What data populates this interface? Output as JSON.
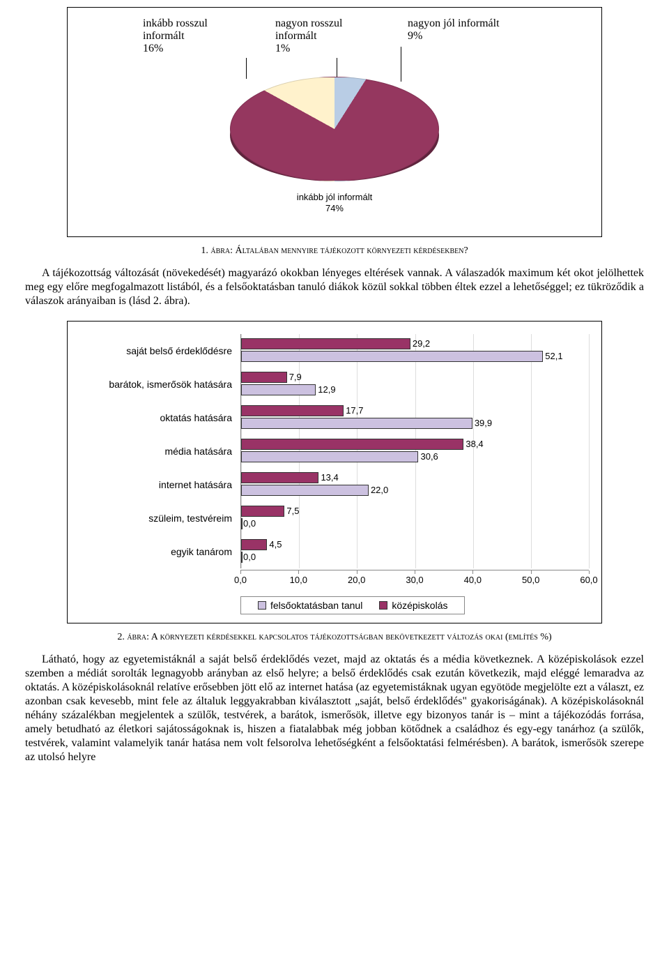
{
  "pie_chart": {
    "type": "pie",
    "slices": [
      {
        "label_l1": "nagyon rosszul",
        "label_l2": "informált",
        "pct": "1%",
        "value": 1,
        "color": "#b9cde5"
      },
      {
        "label_l1": "nagyon jól informált",
        "label_l2": "",
        "pct": "9%",
        "value": 9,
        "color": "#b9cde5"
      },
      {
        "label_l1": "inkább jól informált",
        "label_l2": "",
        "pct": "74%",
        "value": 74,
        "color": "#95375f"
      },
      {
        "label_l1": "inkább rosszul",
        "label_l2": "informált",
        "pct": "16%",
        "value": 16,
        "color": "#fff2cc"
      }
    ],
    "side_color": "#5f243d",
    "background_color": "#ffffff"
  },
  "caption1_prefix": "1. ",
  "caption1_word": "ábra",
  "caption1_rest": ": Általában mennyire tájékozott környezeti kérdésekben?",
  "para1": "A tájékozottság változását (növekedését) magyarázó okokban lényeges eltérések vannak. A válaszadók maximum két okot jelölhettek meg egy előre megfogalmazott listából, és a felsőoktatásban tanuló diákok közül sokkal többen éltek ezzel a lehetőséggel; ez tükröződik a válaszok arányaiban is (lásd 2. ábra).",
  "bar_chart": {
    "type": "bar",
    "xlim": [
      0,
      60
    ],
    "xtick_step": 10,
    "xticks": [
      "0,0",
      "10,0",
      "20,0",
      "30,0",
      "40,0",
      "50,0",
      "60,0"
    ],
    "series": [
      {
        "name": "felsőoktatásban tanul",
        "color": "#ccc1e0",
        "border": "#333333"
      },
      {
        "name": "középiskolás",
        "color": "#993366",
        "border": "#333333"
      }
    ],
    "categories": [
      {
        "label": "saját belső érdeklődésre",
        "a": 29.2,
        "a_txt": "29,2",
        "b": 52.1,
        "b_txt": "52,1"
      },
      {
        "label": "barátok, ismerősök hatására",
        "a": 7.9,
        "a_txt": "7,9",
        "b": 12.9,
        "b_txt": "12,9"
      },
      {
        "label": "oktatás hatására",
        "a": 17.7,
        "a_txt": "17,7",
        "b": 39.9,
        "b_txt": "39,9"
      },
      {
        "label": "média hatására",
        "a": 38.4,
        "a_txt": "38,4",
        "b": 30.6,
        "b_txt": "30,6"
      },
      {
        "label": "internet hatására",
        "a": 13.4,
        "a_txt": "13,4",
        "b": 22.0,
        "b_txt": "22,0"
      },
      {
        "label": "szüleim, testvéreim",
        "a": 7.5,
        "a_txt": "7,5",
        "b": 0.0,
        "b_txt": "0,0"
      },
      {
        "label": "egyik tanárom",
        "a": 4.5,
        "a_txt": "4,5",
        "b": 0.0,
        "b_txt": "0,0"
      }
    ],
    "legend_border": "#888888",
    "grid_color": "#dddddd",
    "axis_color": "#888888",
    "label_fontsize": 14,
    "value_fontsize": 13
  },
  "caption2_prefix": "2. ",
  "caption2_word": "ábra",
  "caption2_rest": ": A környezeti kérdésekkel kapcsolatos tájékozottságban bekövetkezett változás okai (említés %)",
  "para2": "Látható, hogy az egyetemistáknál a saját belső érdeklődés vezet, majd az oktatás és a média következnek. A középiskolások ezzel szemben a médiát sorolták legnagyobb arányban az első helyre; a belső érdeklődés csak ezután következik, majd eléggé lemaradva az oktatás. A középiskolásoknál relatíve erősebben jött elő az internet hatása (az egyetemistáknak ugyan egyötöde megjelölte ezt a választ, ez azonban csak kevesebb, mint fele az általuk leggyakrabban kiválasztott „saját, belső érdeklődés\" gyakoriságának). A középiskolásoknál néhány százalékban megjelentek a szülők, testvérek, a barátok, ismerősök, illetve egy bizonyos tanár is – mint a tájékozódás forrása, amely betudható az életkori sajátosságoknak is, hiszen a fiatalabbak még jobban kötődnek a családhoz és egy-egy tanárhoz (a szülők, testvérek, valamint valamelyik tanár hatása nem volt felsorolva lehetőségként a felsőoktatási felmérésben). A barátok, ismerősök szerepe az utolsó helyre"
}
